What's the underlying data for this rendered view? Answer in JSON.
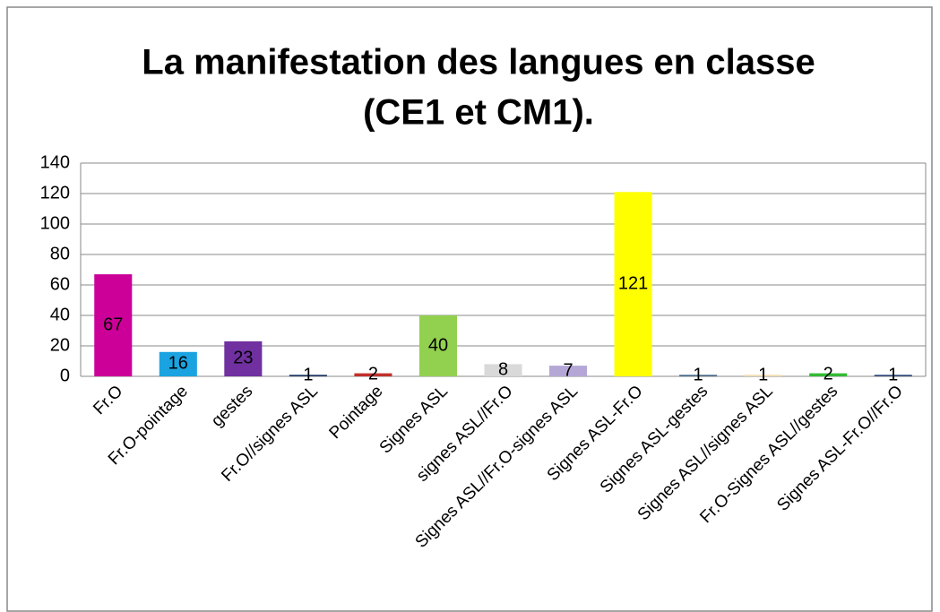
{
  "chart_data": {
    "type": "bar",
    "title": [
      "La manifestation des langues en classe",
      "(CE1 et CM1)."
    ],
    "categories": [
      "Fr.O",
      "Fr.O-pointage",
      "gestes",
      "Fr.O//signes ASL",
      "Pointage",
      "Signes ASL",
      "signes ASL//Fr.O",
      "Signes ASL//Fr.O-signes ASL",
      "Signes ASL-Fr.O",
      "Signes ASL-gestes",
      "Signes ASL//signes ASL",
      "Fr.O-Signes ASL//gestes",
      "Signes ASL-Fr.O//Fr.O"
    ],
    "values": [
      67,
      16,
      23,
      1,
      2,
      40,
      8,
      7,
      121,
      1,
      1,
      2,
      1
    ],
    "colors": [
      "#cc0099",
      "#1aa3e0",
      "#7030a0",
      "#1f3864",
      "#c0302a",
      "#92d050",
      "#d9d9d9",
      "#b4a7d6",
      "#ffff00",
      "#4a6b8a",
      "#f2dcb0",
      "#33bb33",
      "#2e4a7a"
    ],
    "ylim": [
      0,
      140
    ],
    "yticks": [
      0,
      20,
      40,
      60,
      80,
      100,
      120,
      140
    ],
    "grid": true
  }
}
